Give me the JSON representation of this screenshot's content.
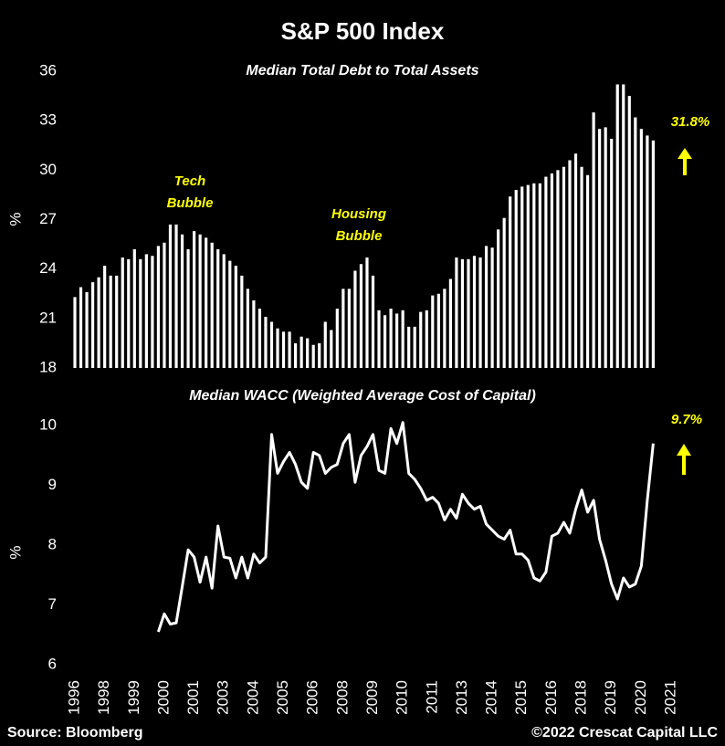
{
  "title": "S&P 500 Index",
  "source": "Source: Bloomberg",
  "credit": "©2022 Crescat Capital LLC",
  "chart_data": [
    {
      "type": "bar",
      "title": "Median Total Debt to Total Assets",
      "y_label": "%",
      "color": "#ffffff",
      "ylim": [
        18,
        36
      ],
      "yticks": [
        18,
        21,
        24,
        27,
        30,
        33,
        36
      ],
      "annotations": [
        [
          "Tech",
          "Bubble"
        ],
        [
          "Housing",
          "Bubble"
        ],
        [
          "31.8%"
        ]
      ],
      "values": [
        22.3,
        22.9,
        22.6,
        23.2,
        23.5,
        24.2,
        23.6,
        23.6,
        24.7,
        24.6,
        25.2,
        24.6,
        24.9,
        24.8,
        25.4,
        25.6,
        26.7,
        26.7,
        26.1,
        25.2,
        26.3,
        26.1,
        25.9,
        25.6,
        25.2,
        24.9,
        24.5,
        24.2,
        23.6,
        22.8,
        22.1,
        21.6,
        21.1,
        20.8,
        20.4,
        20.2,
        20.2,
        19.5,
        19.9,
        19.8,
        19.4,
        19.5,
        20.8,
        20.3,
        21.6,
        22.8,
        22.8,
        23.9,
        24.3,
        24.7,
        23.6,
        21.5,
        21.2,
        21.6,
        21.3,
        21.5,
        20.5,
        20.5,
        21.4,
        21.5,
        22.4,
        22.5,
        22.8,
        23.4,
        24.7,
        24.6,
        24.6,
        24.8,
        24.7,
        25.4,
        25.3,
        26.4,
        27.1,
        28.4,
        28.8,
        29.0,
        29.1,
        29.2,
        29.2,
        29.6,
        29.8,
        30.0,
        30.2,
        30.6,
        31.0,
        30.2,
        29.7,
        33.5,
        32.5,
        32.6,
        31.9,
        35.2,
        35.2,
        34.5,
        33.2,
        32.5,
        32.1,
        31.8,
        null,
        null,
        null
      ]
    },
    {
      "type": "line",
      "title": "Median WACC (Weighted Average Cost of Capital)",
      "y_label": "%",
      "color": "#ffffff",
      "ylim": [
        6,
        10
      ],
      "yticks": [
        6,
        7,
        8,
        9,
        10
      ],
      "annotations": [
        [
          "9.7%"
        ]
      ],
      "categories": [
        "1996",
        null,
        null,
        null,
        null,
        "1998",
        null,
        null,
        null,
        null,
        "1999",
        null,
        null,
        null,
        null,
        "2000",
        null,
        null,
        null,
        null,
        "2001",
        null,
        null,
        null,
        null,
        "2003",
        null,
        null,
        null,
        null,
        "2004",
        null,
        null,
        null,
        null,
        "2005",
        null,
        null,
        null,
        null,
        "2006",
        null,
        null,
        null,
        null,
        "2008",
        null,
        null,
        null,
        null,
        "2009",
        null,
        null,
        null,
        null,
        "2010",
        null,
        null,
        null,
        null,
        "2011",
        null,
        null,
        null,
        null,
        "2013",
        null,
        null,
        null,
        null,
        "2014",
        null,
        null,
        null,
        null,
        "2015",
        null,
        null,
        null,
        null,
        "2016",
        null,
        null,
        null,
        null,
        "2018",
        null,
        null,
        null,
        null,
        "2019",
        null,
        null,
        null,
        null,
        "2020",
        null,
        null,
        null,
        null,
        "2021"
      ],
      "values": [
        null,
        null,
        null,
        null,
        null,
        null,
        null,
        null,
        null,
        null,
        null,
        null,
        null,
        null,
        6.55,
        6.85,
        6.68,
        6.7,
        7.3,
        7.92,
        7.8,
        7.38,
        7.8,
        7.28,
        8.32,
        7.8,
        7.78,
        7.45,
        7.8,
        7.45,
        7.85,
        7.7,
        7.8,
        9.85,
        9.2,
        9.4,
        9.55,
        9.35,
        9.05,
        8.95,
        9.55,
        9.5,
        9.2,
        9.3,
        9.35,
        9.7,
        9.85,
        9.05,
        9.5,
        9.65,
        9.85,
        9.25,
        9.2,
        9.95,
        9.7,
        10.05,
        9.2,
        9.1,
        8.95,
        8.75,
        8.8,
        8.7,
        8.42,
        8.6,
        8.45,
        8.85,
        8.7,
        8.6,
        8.65,
        8.35,
        8.25,
        8.15,
        8.1,
        8.25,
        7.85,
        7.85,
        7.75,
        7.45,
        7.4,
        7.55,
        8.15,
        8.2,
        8.38,
        8.2,
        8.6,
        8.92,
        8.55,
        8.75,
        8.1,
        7.75,
        7.35,
        7.1,
        7.45,
        7.3,
        7.35,
        7.65,
        8.75,
        9.7,
        null,
        null,
        null
      ]
    }
  ]
}
